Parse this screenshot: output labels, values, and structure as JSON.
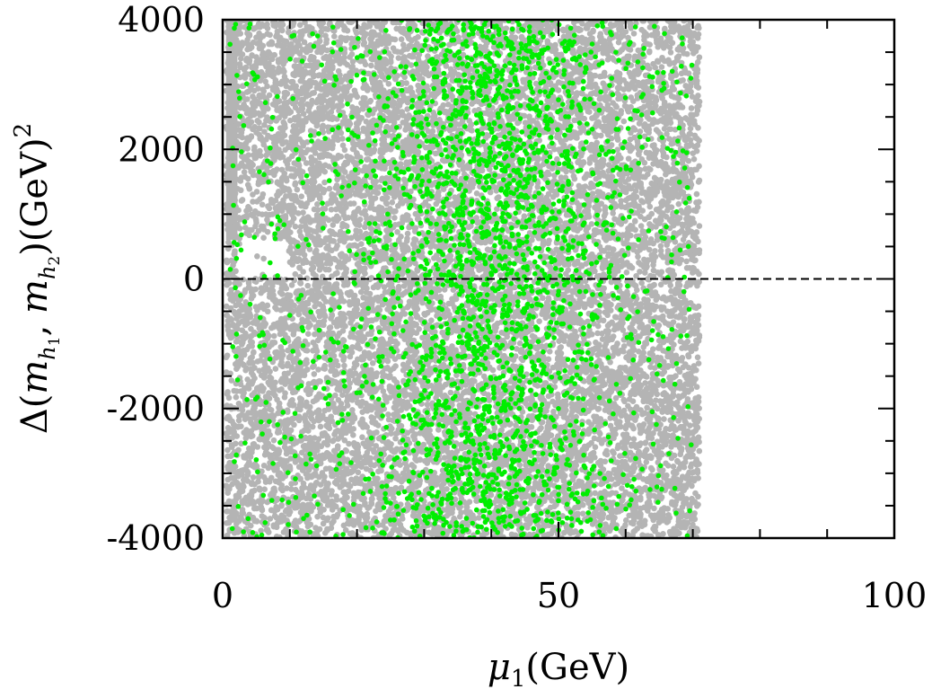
{
  "chart_data": {
    "type": "scatter",
    "title": "",
    "xlabel": "μ1(GeV)",
    "ylabel": "Δ(mh1, mh2)(GeV)²",
    "xlim": [
      0,
      100
    ],
    "ylim": [
      -4000,
      4000
    ],
    "x_ticks": [
      0,
      50,
      100
    ],
    "x_tick_labels": [
      "0",
      "50",
      "100"
    ],
    "y_ticks": [
      -4000,
      -2000,
      0,
      2000,
      4000
    ],
    "y_tick_labels": [
      "-4000",
      "-2000",
      "0",
      "2000",
      "4000"
    ],
    "reference_line": {
      "y": 0,
      "style": "dashed",
      "color": "#000000"
    },
    "grid": false,
    "legend": "none",
    "series": [
      {
        "color": "#b4b4b4",
        "x_range": [
          0.5,
          71
        ],
        "y_range": [
          -4000,
          4000
        ],
        "density": "dense; upper-left region x 0.5-2 and y 600-4000 fully filled; sparse gap near x 2-10, y 0-600"
      },
      {
        "color": "#00ee00",
        "x_range": [
          1,
          70
        ],
        "y_range": [
          -4000,
          4000
        ],
        "density": "concentrated around x 30-50"
      }
    ]
  }
}
